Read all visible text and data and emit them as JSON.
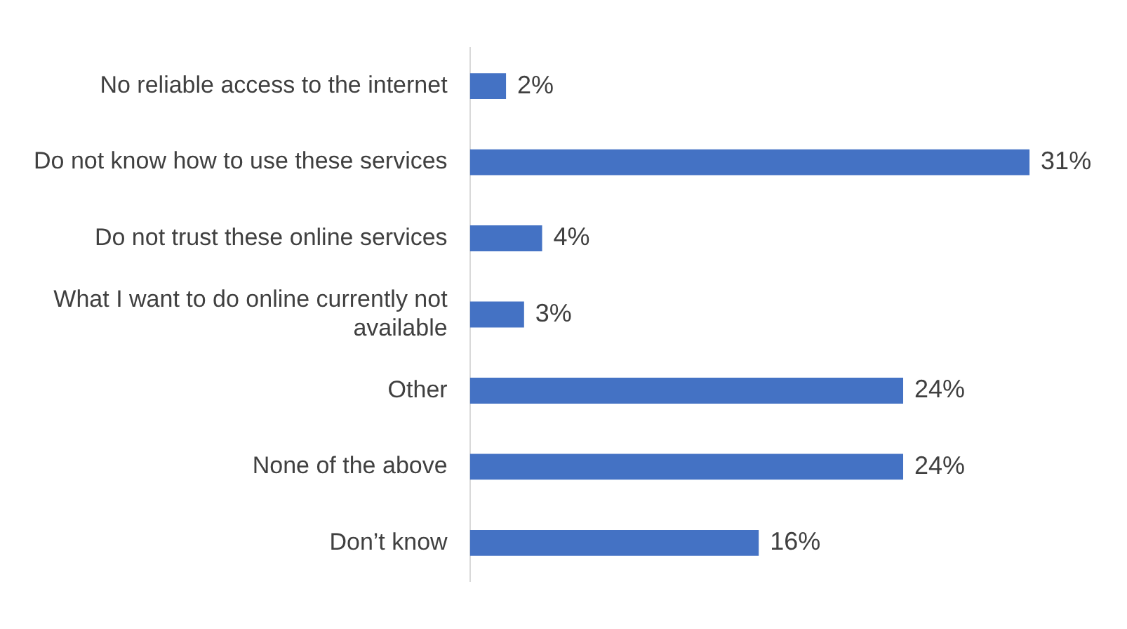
{
  "chart_data": {
    "type": "bar",
    "orientation": "horizontal",
    "categories": [
      "No reliable access to the internet",
      "Do not know how to use these services",
      "Do not trust these online services",
      "What I want to do online currently not available",
      "Other",
      "None of the above",
      "Don’t know"
    ],
    "values": [
      2,
      31,
      4,
      3,
      24,
      24,
      16
    ],
    "value_labels": [
      "2%",
      "31%",
      "4%",
      "3%",
      "24%",
      "24%",
      "16%"
    ],
    "color": "#4472c4",
    "legend": false,
    "tick_labels": "y"
  }
}
